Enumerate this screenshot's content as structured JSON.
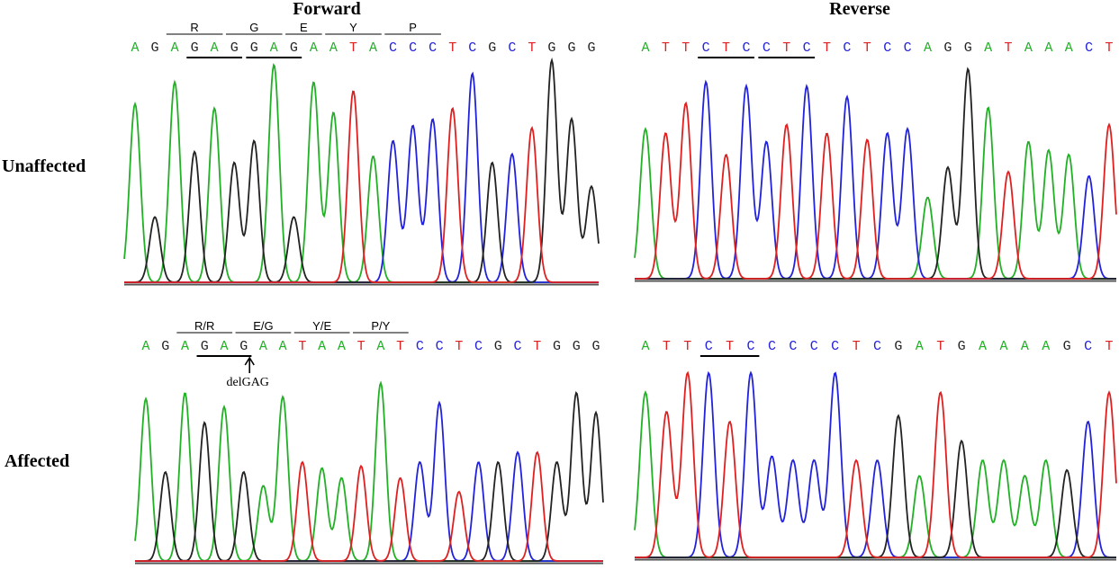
{
  "colors": {
    "A": "#22b026",
    "C": "#2222dd",
    "G": "#222222",
    "T": "#e02020",
    "baseline": "#555555"
  },
  "titles": {
    "forward": "Forward",
    "reverse": "Reverse"
  },
  "row_labels": {
    "unaffected": "Unaffected",
    "affected": "Affected"
  },
  "mutation_label": "delGAG",
  "panels": [
    {
      "id": "unaffected-forward",
      "box": [
        138,
        30,
        665,
        322
      ],
      "sequence": "AGAGAGGAGAATACCCTCGCTGGG",
      "codons": [
        {
          "label": "R",
          "from": 2,
          "to": 4
        },
        {
          "label": "G",
          "from": 5,
          "to": 7
        },
        {
          "label": "E",
          "from": 8,
          "to": 9
        },
        {
          "label": "Y",
          "from": 10,
          "to": 12
        },
        {
          "label": "P",
          "from": 13,
          "to": 15
        }
      ],
      "underlines": [
        [
          3,
          5
        ],
        [
          6,
          8
        ]
      ],
      "peaks": [
        0.82,
        0.3,
        0.92,
        0.6,
        0.8,
        0.55,
        0.65,
        1.0,
        0.3,
        0.92,
        0.78,
        0.88,
        0.58,
        0.65,
        0.72,
        0.75,
        0.8,
        0.96,
        0.55,
        0.59,
        0.71,
        1.02,
        0.75,
        0.44
      ]
    },
    {
      "id": "unaffected-reverse",
      "box": [
        705,
        30,
        1240,
        318
      ],
      "sequence": "ATTCTCCTCTCTCCAGGATAAACT",
      "codons": [],
      "underlines": [
        [
          3,
          5
        ],
        [
          6,
          8
        ]
      ],
      "peaks": [
        0.7,
        0.68,
        0.82,
        0.92,
        0.58,
        0.9,
        0.64,
        0.72,
        0.9,
        0.68,
        0.85,
        0.65,
        0.68,
        0.7,
        0.38,
        0.52,
        0.98,
        0.8,
        0.5,
        0.64,
        0.6,
        0.58,
        0.48,
        0.72
      ]
    },
    {
      "id": "affected-forward",
      "box": [
        150,
        362,
        670,
        632
      ],
      "sequence": "AGAGAGAATAATATCCTCGCTGGG",
      "codons": [
        {
          "label": "R/R",
          "from": 2,
          "to": 4
        },
        {
          "label": "E/G",
          "from": 5,
          "to": 7
        },
        {
          "label": "Y/E",
          "from": 8,
          "to": 10
        },
        {
          "label": "P/Y",
          "from": 11,
          "to": 13
        }
      ],
      "underlines": [
        [
          3,
          5
        ]
      ],
      "arrow_at": 5,
      "peaks": [
        0.82,
        0.45,
        0.85,
        0.7,
        0.78,
        0.45,
        0.38,
        0.83,
        0.5,
        0.47,
        0.42,
        0.48,
        0.9,
        0.42,
        0.5,
        0.8,
        0.35,
        0.5,
        0.5,
        0.55,
        0.55,
        0.5,
        0.85,
        0.75
      ]
    },
    {
      "id": "affected-reverse",
      "box": [
        705,
        362,
        1240,
        628
      ],
      "sequence": "ATTCTCCCCCTCGATGAAAAGCT",
      "codons": [],
      "underlines": [
        [
          3,
          5
        ]
      ],
      "peaks": [
        0.85,
        0.75,
        0.95,
        0.95,
        0.7,
        0.95,
        0.52,
        0.5,
        0.5,
        0.95,
        0.5,
        0.5,
        0.73,
        0.42,
        0.85,
        0.6,
        0.5,
        0.5,
        0.42,
        0.5,
        0.45,
        0.7,
        0.85
      ]
    }
  ]
}
